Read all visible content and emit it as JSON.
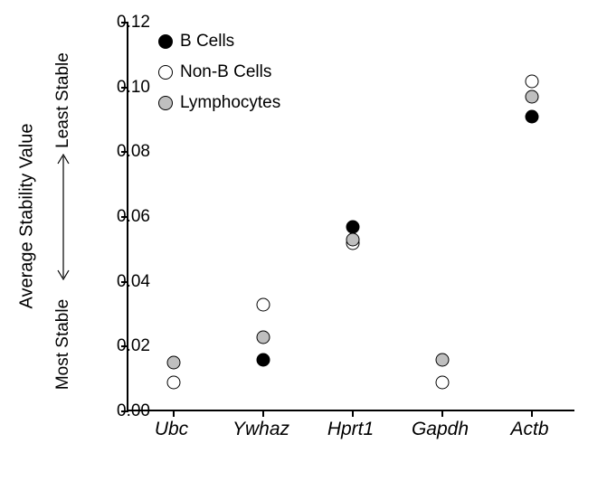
{
  "chart": {
    "type": "scatter",
    "background_color": "#ffffff",
    "axis_color": "#000000",
    "text_color": "#000000",
    "y_axis": {
      "label_main": "Average Stability Value",
      "label_top": "Least Stable",
      "label_bottom": "Most Stable",
      "min": 0.0,
      "max": 0.12,
      "ticks": [
        0.0,
        0.02,
        0.04,
        0.06,
        0.08,
        0.1,
        0.12
      ],
      "tick_labels": [
        "0.00",
        "0.02",
        "0.04",
        "0.06",
        "0.08",
        "0.10",
        "0.12"
      ]
    },
    "x_axis": {
      "categories": [
        "Ubc",
        "Ywhaz",
        "Hprt1",
        "Gapdh",
        "Actb"
      ],
      "font_style": "italic"
    },
    "series": [
      {
        "name": "B Cells",
        "fill": "#000000",
        "stroke": "#000000",
        "values": [
          null,
          0.016,
          0.057,
          null,
          0.091
        ]
      },
      {
        "name": "Non-B Cells",
        "fill": "#ffffff",
        "stroke": "#000000",
        "values": [
          0.009,
          0.033,
          0.052,
          0.009,
          0.102
        ]
      },
      {
        "name": "Lymphocytes",
        "fill": "#bfbfbf",
        "stroke": "#000000",
        "values": [
          0.015,
          0.023,
          0.053,
          0.016,
          0.097
        ]
      }
    ],
    "marker_radius": 7.5,
    "legend": {
      "position": "top-left-inside"
    }
  }
}
